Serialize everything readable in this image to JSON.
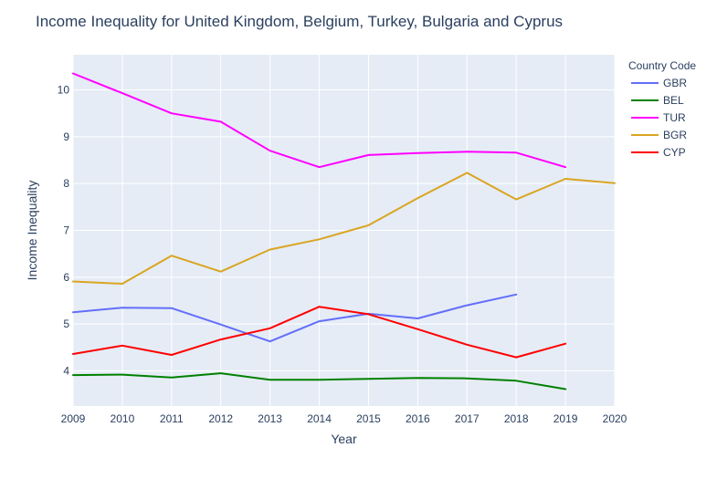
{
  "chart_data": {
    "type": "line",
    "title": "Income Inequality for United Kingdom, Belgium, Turkey, Bulgaria and Cyprus",
    "xlabel": "Year",
    "ylabel": "Income Inequality",
    "xlim": [
      2009,
      2020
    ],
    "ylim": [
      3.25,
      10.75
    ],
    "x_ticks": [
      "2009",
      "2010",
      "2011",
      "2012",
      "2013",
      "2014",
      "2015",
      "2016",
      "2017",
      "2018",
      "2019",
      "2020"
    ],
    "y_ticks": [
      "4",
      "5",
      "6",
      "7",
      "8",
      "9",
      "10"
    ],
    "grid": true,
    "legend": {
      "title": "Country Code",
      "placement": "top-right"
    },
    "series": [
      {
        "name": "GBR",
        "color": "#636efa",
        "x": [
          2009,
          2010,
          2011,
          2012,
          2013,
          2014,
          2015,
          2016,
          2017,
          2018
        ],
        "values": [
          5.25,
          5.35,
          5.34,
          4.99,
          4.63,
          5.06,
          5.22,
          5.12,
          5.4,
          5.63
        ]
      },
      {
        "name": "BEL",
        "color": "#008000",
        "x": [
          2009,
          2010,
          2011,
          2012,
          2013,
          2014,
          2015,
          2016,
          2017,
          2018,
          2019
        ],
        "values": [
          3.91,
          3.92,
          3.86,
          3.95,
          3.81,
          3.81,
          3.83,
          3.85,
          3.84,
          3.79,
          3.61
        ]
      },
      {
        "name": "TUR",
        "color": "#ff00ff",
        "x": [
          2009,
          2010,
          2011,
          2012,
          2013,
          2014,
          2015,
          2016,
          2017,
          2018,
          2019
        ],
        "values": [
          10.35,
          9.93,
          9.5,
          9.32,
          8.7,
          8.35,
          8.61,
          8.65,
          8.68,
          8.66,
          8.35
        ]
      },
      {
        "name": "BGR",
        "color": "#daa520",
        "x": [
          2009,
          2010,
          2011,
          2012,
          2013,
          2014,
          2015,
          2016,
          2017,
          2018,
          2019,
          2020
        ],
        "values": [
          5.91,
          5.86,
          6.46,
          6.12,
          6.59,
          6.81,
          7.11,
          7.69,
          8.23,
          7.66,
          8.1,
          8.01
        ]
      },
      {
        "name": "CYP",
        "color": "#ff0000",
        "x": [
          2009,
          2010,
          2011,
          2012,
          2013,
          2014,
          2015,
          2016,
          2017,
          2018,
          2019
        ],
        "values": [
          4.36,
          4.54,
          4.34,
          4.67,
          4.91,
          5.37,
          5.21,
          4.89,
          4.56,
          4.29,
          4.58
        ]
      }
    ]
  }
}
